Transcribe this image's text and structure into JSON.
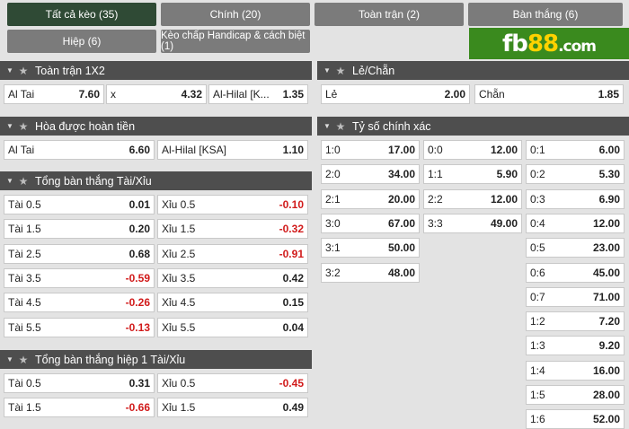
{
  "tabs_row1": [
    {
      "label": "Tất cả kèo (35)",
      "active": true
    },
    {
      "label": "Chính (20)",
      "active": false
    },
    {
      "label": "Toàn trận (2)",
      "active": false
    },
    {
      "label": "Bàn thắng (6)",
      "active": false
    }
  ],
  "tabs_row2": [
    {
      "label": "Hiệp (6)",
      "active": false
    },
    {
      "label": "Kèo chấp Handicap & cách biệt (1)",
      "active": false
    }
  ],
  "logo": {
    "main": "fb",
    "num": "88",
    "suffix": ".com"
  },
  "sections": {
    "fulltime_1x2": {
      "title": "Toàn trận 1X2",
      "cells": [
        {
          "name": "Al Tai",
          "odd": "7.60"
        },
        {
          "name": "x",
          "odd": "4.32"
        },
        {
          "name": "Al-Hilal [K...",
          "odd": "1.35"
        }
      ]
    },
    "odd_even": {
      "title": "Lẻ/Chẵn",
      "cells": [
        {
          "name": "Lẻ",
          "odd": "2.00"
        },
        {
          "name": "Chẵn",
          "odd": "1.85"
        }
      ]
    },
    "draw_no_bet": {
      "title": "Hòa được hoàn tiền",
      "cells": [
        {
          "name": "Al Tai",
          "odd": "6.60"
        },
        {
          "name": "Al-Hilal [KSA]",
          "odd": "1.10"
        }
      ]
    },
    "correct_score": {
      "title": "Tỷ số chính xác",
      "col1": [
        {
          "name": "1:0",
          "odd": "17.00"
        },
        {
          "name": "2:0",
          "odd": "34.00"
        },
        {
          "name": "2:1",
          "odd": "20.00"
        },
        {
          "name": "3:0",
          "odd": "67.00"
        },
        {
          "name": "3:1",
          "odd": "50.00"
        },
        {
          "name": "3:2",
          "odd": "48.00"
        }
      ],
      "col2": [
        {
          "name": "0:0",
          "odd": "12.00"
        },
        {
          "name": "1:1",
          "odd": "5.90"
        },
        {
          "name": "2:2",
          "odd": "12.00"
        },
        {
          "name": "3:3",
          "odd": "49.00"
        }
      ],
      "col3": [
        {
          "name": "0:1",
          "odd": "6.00"
        },
        {
          "name": "0:2",
          "odd": "5.30"
        },
        {
          "name": "0:3",
          "odd": "6.90"
        },
        {
          "name": "0:4",
          "odd": "12.00"
        },
        {
          "name": "0:5",
          "odd": "23.00"
        },
        {
          "name": "0:6",
          "odd": "45.00"
        },
        {
          "name": "0:7",
          "odd": "71.00"
        },
        {
          "name": "1:2",
          "odd": "7.20"
        },
        {
          "name": "1:3",
          "odd": "9.20"
        },
        {
          "name": "1:4",
          "odd": "16.00"
        },
        {
          "name": "1:5",
          "odd": "28.00"
        },
        {
          "name": "1:6",
          "odd": "52.00"
        }
      ]
    },
    "total_goals": {
      "title": "Tổng bàn thắng Tài/Xỉu",
      "rows": [
        [
          {
            "name": "Tài 0.5",
            "odd": "0.01",
            "neg": false
          },
          {
            "name": "Xỉu 0.5",
            "odd": "-0.10",
            "neg": true
          }
        ],
        [
          {
            "name": "Tài 1.5",
            "odd": "0.20",
            "neg": false
          },
          {
            "name": "Xỉu 1.5",
            "odd": "-0.32",
            "neg": true
          }
        ],
        [
          {
            "name": "Tài 2.5",
            "odd": "0.68",
            "neg": false
          },
          {
            "name": "Xỉu 2.5",
            "odd": "-0.91",
            "neg": true
          }
        ],
        [
          {
            "name": "Tài 3.5",
            "odd": "-0.59",
            "neg": true
          },
          {
            "name": "Xỉu 3.5",
            "odd": "0.42",
            "neg": false
          }
        ],
        [
          {
            "name": "Tài 4.5",
            "odd": "-0.26",
            "neg": true
          },
          {
            "name": "Xỉu 4.5",
            "odd": "0.15",
            "neg": false
          }
        ],
        [
          {
            "name": "Tài 5.5",
            "odd": "-0.13",
            "neg": true
          },
          {
            "name": "Xỉu 5.5",
            "odd": "0.04",
            "neg": false
          }
        ]
      ]
    },
    "total_goals_h1": {
      "title": "Tổng bàn thắng hiệp 1 Tài/Xỉu",
      "rows": [
        [
          {
            "name": "Tài 0.5",
            "odd": "0.31",
            "neg": false
          },
          {
            "name": "Xỉu 0.5",
            "odd": "-0.45",
            "neg": true
          }
        ],
        [
          {
            "name": "Tài 1.5",
            "odd": "-0.66",
            "neg": true
          },
          {
            "name": "Xỉu 1.5",
            "odd": "0.49",
            "neg": false
          }
        ]
      ]
    }
  },
  "icons": {
    "collapse": "chevron-down-icon",
    "favorite": "star-icon"
  }
}
